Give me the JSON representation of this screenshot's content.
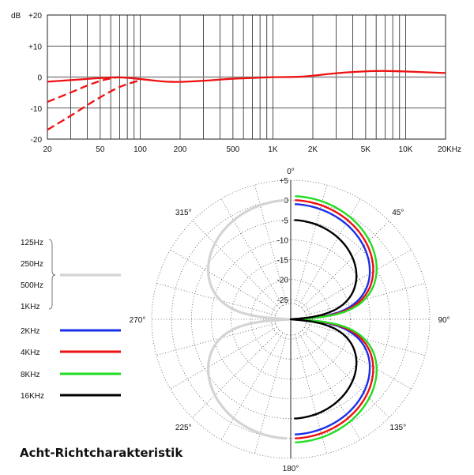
{
  "chart_data": [
    {
      "type": "line",
      "y_unit": "dB",
      "xlim": [
        20,
        20000
      ],
      "ylim": [
        -20,
        20
      ],
      "x_scale": "log",
      "grid": true,
      "x_ticks": [
        {
          "value": 20,
          "label": "20"
        },
        {
          "value": 50,
          "label": "50"
        },
        {
          "value": 100,
          "label": "100"
        },
        {
          "value": 200,
          "label": "200"
        },
        {
          "value": 500,
          "label": "500"
        },
        {
          "value": 1000,
          "label": "1K"
        },
        {
          "value": 2000,
          "label": "2K"
        },
        {
          "value": 5000,
          "label": "5K"
        },
        {
          "value": 10000,
          "label": "10K"
        },
        {
          "value": 20000,
          "label": "20KHz"
        }
      ],
      "y_ticks": [
        {
          "value": 20,
          "label": "+20"
        },
        {
          "value": 10,
          "label": "+10"
        },
        {
          "value": 0,
          "label": "0"
        },
        {
          "value": -10,
          "label": "-10"
        },
        {
          "value": -20,
          "label": "-20"
        }
      ],
      "series": [
        {
          "style": "solid",
          "color": "#ee1111",
          "x": [
            20,
            30,
            40,
            50,
            70,
            100,
            150,
            200,
            300,
            500,
            700,
            1000,
            1500,
            2000,
            3000,
            5000,
            7000,
            10000,
            15000,
            20000
          ],
          "y": [
            -1.5,
            -1.0,
            -0.6,
            -0.3,
            0,
            -0.6,
            -1.5,
            -1.6,
            -1.2,
            -0.5,
            -0.3,
            0,
            0,
            0.4,
            1.3,
            1.9,
            2.0,
            1.8,
            1.5,
            1.3
          ]
        },
        {
          "style": "dashed",
          "color": "#ee1111",
          "x": [
            20,
            30,
            40,
            50,
            60,
            70
          ],
          "y": [
            -8.0,
            -5.0,
            -2.7,
            -1.2,
            -0.4,
            0
          ]
        },
        {
          "style": "dashed",
          "color": "#ee1111",
          "x": [
            20,
            30,
            40,
            50,
            70,
            100
          ],
          "y": [
            -17.0,
            -12.5,
            -9.0,
            -6.5,
            -3.0,
            -1.0
          ]
        }
      ]
    },
    {
      "type": "polar",
      "r_unit": "dB",
      "rlim": [
        -30,
        5
      ],
      "r_ticks": [
        "+5",
        "0",
        "-5",
        "-10",
        "-15",
        "-20",
        "-25"
      ],
      "angle_labels": [
        "0°",
        "45°",
        "90°",
        "135°",
        "180°",
        "225°",
        "270°",
        "315°"
      ],
      "legend_group": [
        "125Hz",
        "250Hz",
        "500Hz",
        "1KHz"
      ],
      "series": [
        {
          "name": "2KHz",
          "color": "#1a2fe8",
          "peak_db": -1.0
        },
        {
          "name": "4KHz",
          "color": "#ee1111",
          "peak_db": 0.0
        },
        {
          "name": "8KHz",
          "color": "#22dd22",
          "peak_db": 1.0
        },
        {
          "name": "16KHz",
          "color": "#000000",
          "peak_db": -5.0
        },
        {
          "name": "group",
          "color": "#d4d4d4",
          "peak_db": 0.0
        }
      ]
    }
  ],
  "caption": "Acht-Richtcharakteristik"
}
